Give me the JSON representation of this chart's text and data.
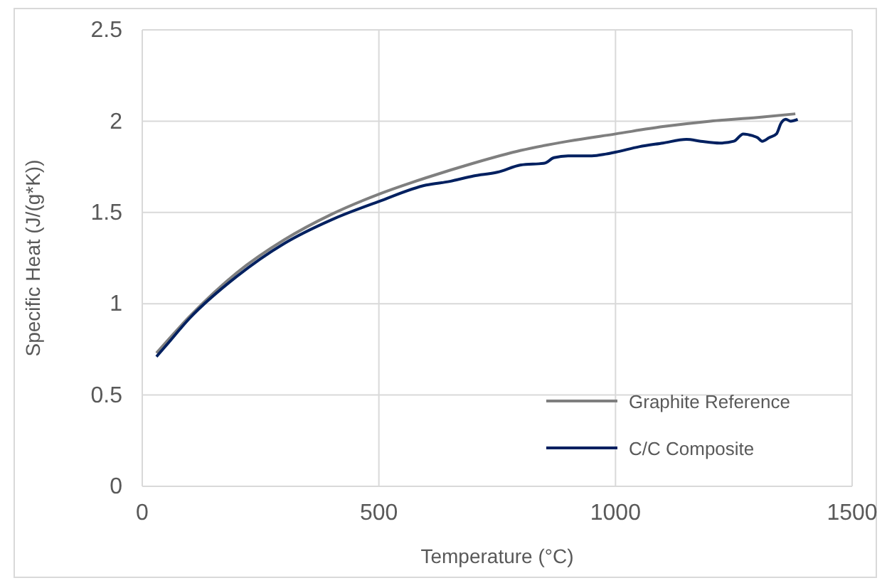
{
  "chart_data": {
    "type": "line",
    "xlabel": "Temperature (°C)",
    "ylabel": "Specific Heat  (J/(g*K))",
    "xlim": [
      0,
      1500
    ],
    "xticks": [
      0,
      500,
      1000,
      1500
    ],
    "ylim": [
      0,
      2.5
    ],
    "yticks": [
      0,
      0.5,
      1,
      1.5,
      2,
      2.5
    ],
    "grid": true,
    "legend": "bottom right",
    "marker": "none",
    "line_style": "solid",
    "series": [
      {
        "name": "Graphite Reference",
        "color": "#7f7f7f",
        "x": [
          30,
          100,
          200,
          300,
          400,
          500,
          600,
          700,
          800,
          900,
          1000,
          1100,
          1200,
          1300,
          1380
        ],
        "values": [
          0.73,
          0.93,
          1.17,
          1.35,
          1.49,
          1.6,
          1.69,
          1.77,
          1.84,
          1.89,
          1.93,
          1.97,
          2.0,
          2.02,
          2.04
        ]
      },
      {
        "name": "C/C Composite",
        "color": "#002060",
        "x": [
          30,
          50,
          100,
          200,
          300,
          400,
          500,
          600,
          650,
          700,
          750,
          800,
          850,
          870,
          900,
          950,
          980,
          1000,
          1050,
          1100,
          1150,
          1180,
          1220,
          1250,
          1270,
          1290,
          1300,
          1310,
          1325,
          1340,
          1350,
          1360,
          1370,
          1385
        ],
        "values": [
          0.71,
          0.77,
          0.92,
          1.15,
          1.33,
          1.46,
          1.56,
          1.65,
          1.67,
          1.7,
          1.72,
          1.76,
          1.77,
          1.8,
          1.81,
          1.81,
          1.82,
          1.83,
          1.86,
          1.88,
          1.9,
          1.89,
          1.88,
          1.89,
          1.93,
          1.92,
          1.91,
          1.89,
          1.91,
          1.93,
          1.99,
          2.01,
          2.0,
          2.01
        ]
      }
    ]
  }
}
